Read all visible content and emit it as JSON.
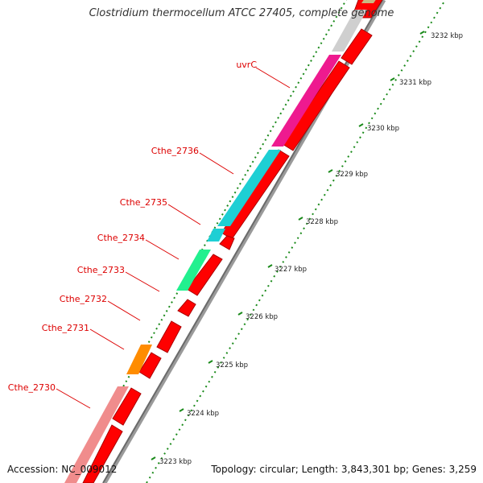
{
  "title": "Clostridium thermocellum ATCC 27405, complete genome",
  "accession": "Accession: NC_009012",
  "summary": "Topology: circular; Length: 3,843,301 bp; Genes: 3,259",
  "colors": {
    "forward_cds": "#ff0000",
    "reverse_cds": "#ff0000",
    "uvrC": "#ee1a8f",
    "Cthe_2736": "#1ecfd4",
    "Cthe_2735": "#1ecfd4",
    "Cthe_2734": "#22f08f",
    "Cthe_2731": "#ff8c00",
    "Cthe_2730": "#f08c8c",
    "other": "#cfcfcf",
    "tick_minor": "#1a8a1a",
    "label": "#dd0000",
    "leader": "#dd0000"
  },
  "gene_labels": [
    {
      "name": "uvrC"
    },
    {
      "name": "Cthe_2736"
    },
    {
      "name": "Cthe_2735"
    },
    {
      "name": "Cthe_2734"
    },
    {
      "name": "Cthe_2733"
    },
    {
      "name": "Cthe_2732"
    },
    {
      "name": "Cthe_2731"
    },
    {
      "name": "Cthe_2730"
    }
  ],
  "scale_ticks": [
    "3232 kbp",
    "3231 kbp",
    "3230 kbp",
    "3229 kbp",
    "3228 kbp",
    "3227 kbp",
    "3226 kbp",
    "3225 kbp",
    "3224 kbp",
    "3223 kbp"
  ]
}
